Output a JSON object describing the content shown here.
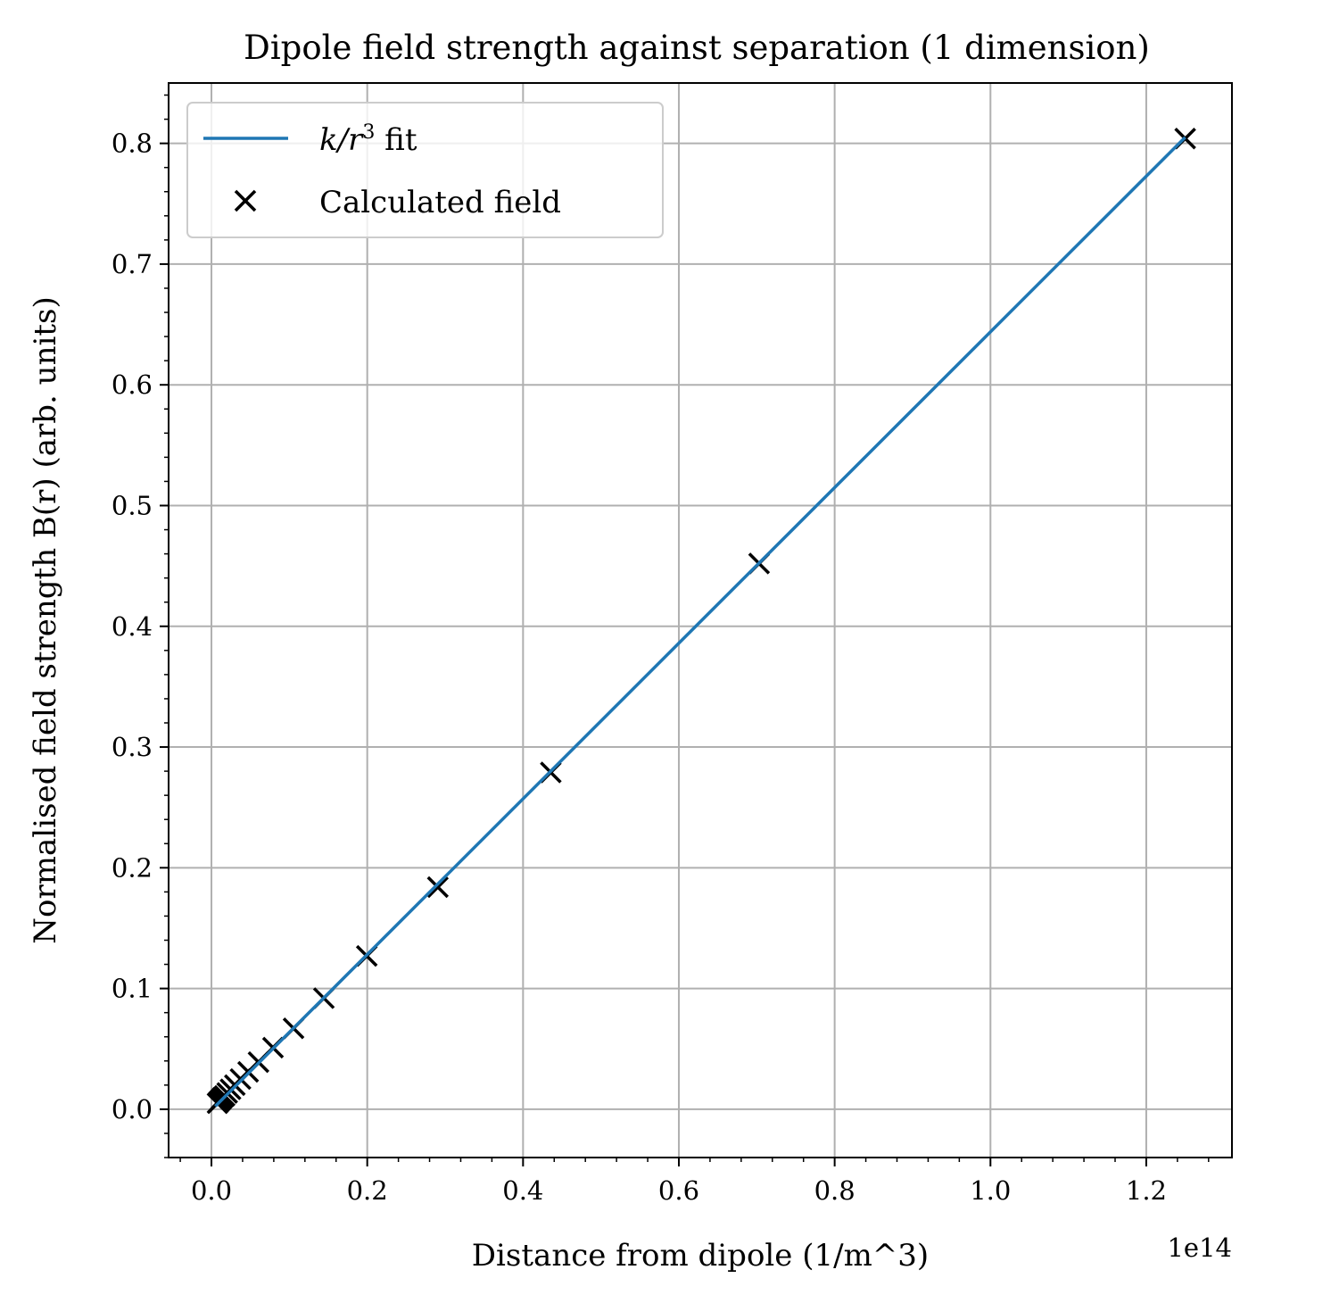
{
  "chart_data": {
    "type": "scatter",
    "title": "Dipole field strength against separation (1 dimension)",
    "xlabel": "Distance from dipole (1/m^3)",
    "ylabel": "Normalised field strength B(r) (arb. units)",
    "x_offset_text": "1e14",
    "x_scale": 100000000000000.0,
    "xlim": [
      -0.055,
      1.31
    ],
    "ylim": [
      -0.04,
      0.85
    ],
    "xticks": [
      0.0,
      0.2,
      0.4,
      0.6,
      0.8,
      1.0,
      1.2
    ],
    "xtick_labels": [
      "0.0",
      "0.2",
      "0.4",
      "0.6",
      "0.8",
      "1.0",
      "1.2"
    ],
    "yticks": [
      0.0,
      0.1,
      0.2,
      0.3,
      0.4,
      0.5,
      0.6,
      0.7,
      0.8
    ],
    "ytick_labels": [
      "0.0",
      "0.1",
      "0.2",
      "0.3",
      "0.4",
      "0.5",
      "0.6",
      "0.7",
      "0.8"
    ],
    "grid": true,
    "legend_position": "upper-left",
    "series": [
      {
        "name": "k/r³ fit",
        "legend_math": {
          "k": "k",
          "slash": "/",
          "r": "r",
          "exp": "3",
          "suffix": " fit"
        },
        "kind": "line",
        "color": "#1f77b4",
        "x": [
          0.005,
          1.25
        ],
        "y": [
          0.0025,
          0.805
        ]
      },
      {
        "name": "Calculated field",
        "kind": "scatter",
        "marker": "x",
        "color": "#000000",
        "x": [
          1.25,
          0.703,
          0.4356,
          0.2906,
          0.1994,
          0.1443,
          0.1054,
          0.079,
          0.0604,
          0.0471,
          0.0373,
          0.03,
          0.0245,
          0.0202,
          0.0169,
          0.0142,
          0.0121,
          0.0104,
          0.009,
          0.0078
        ],
        "y": [
          0.804,
          0.452,
          0.279,
          0.184,
          0.127,
          0.092,
          0.067,
          0.051,
          0.039,
          0.031,
          0.025,
          0.02,
          0.0165,
          0.0135,
          0.011,
          0.0095,
          0.008,
          0.0068,
          0.0058,
          0.005
        ]
      }
    ]
  }
}
